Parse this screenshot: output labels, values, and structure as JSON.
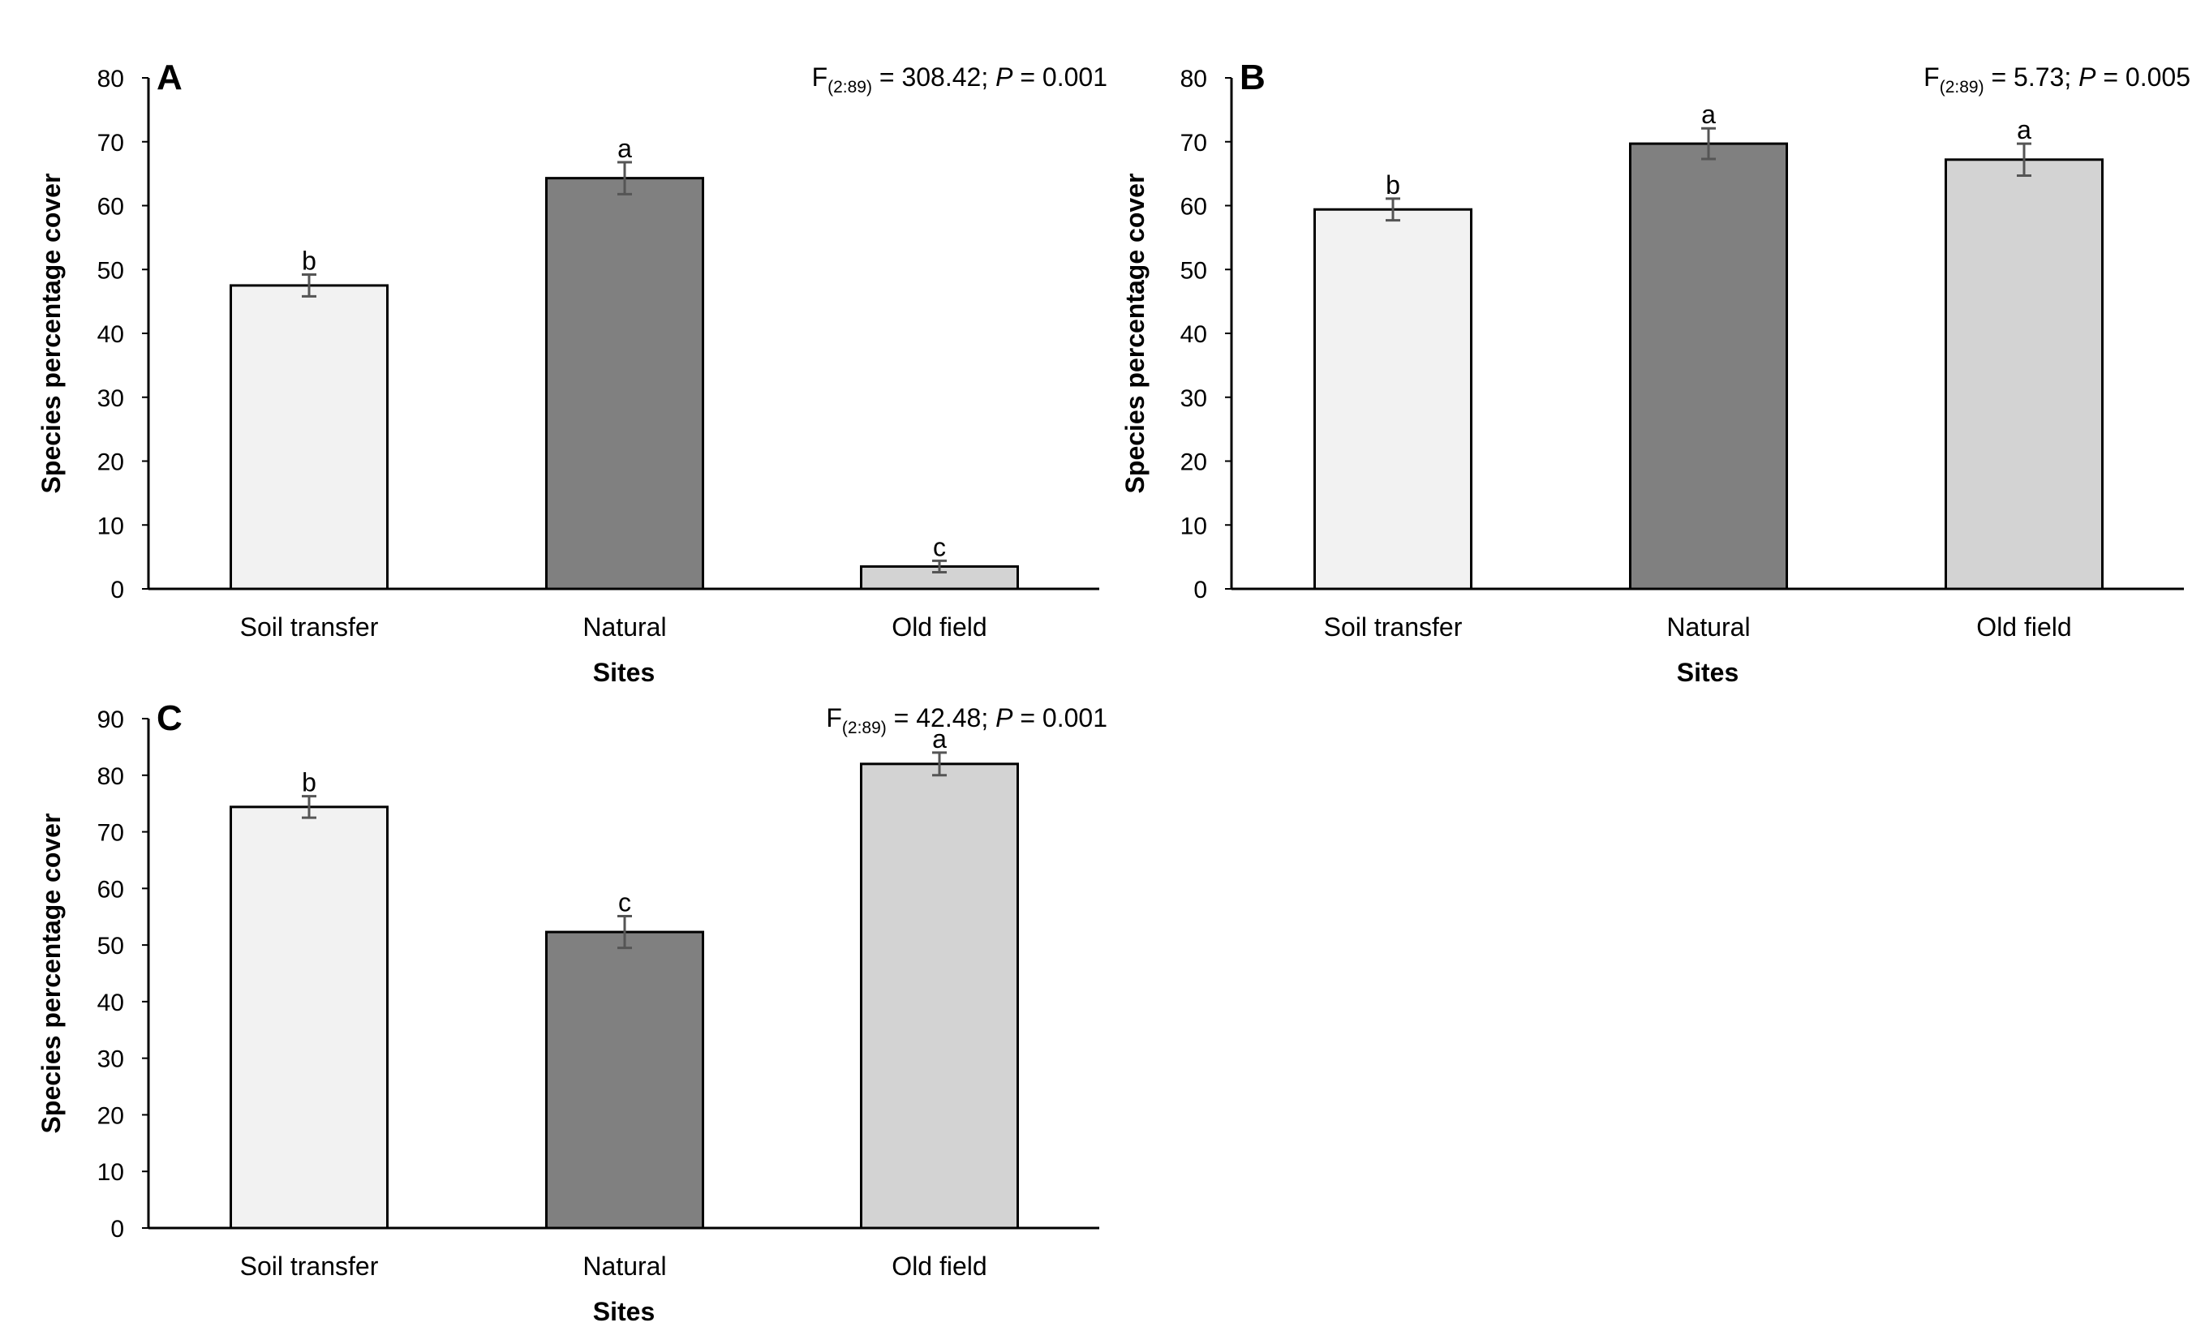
{
  "chart_data": [
    {
      "type": "bar",
      "panel": "A",
      "stat": {
        "f_prefix": "F",
        "f_sub": "(2:89)",
        "f_value": " = 308.42; ",
        "p_label": "P",
        "p_value": " = 0.001"
      },
      "categories": [
        "Soil transfer",
        "Natural",
        "Old field"
      ],
      "values": [
        47.5,
        64.3,
        3.5
      ],
      "errors": [
        1.7,
        2.5,
        0.9
      ],
      "letters": [
        "b",
        "a",
        "c"
      ],
      "colors": [
        "#f2f2f2",
        "#808080",
        "#d3d3d3"
      ],
      "ylabel": "Species percentage cover",
      "xlabel": "Sites",
      "ylim": [
        0,
        80
      ],
      "yticks": [
        0,
        10,
        20,
        30,
        40,
        50,
        60,
        70,
        80
      ]
    },
    {
      "type": "bar",
      "panel": "B",
      "stat": {
        "f_prefix": "F",
        "f_sub": "(2:89)",
        "f_value": " = 5.73; ",
        "p_label": "P",
        "p_value": " = 0.005"
      },
      "categories": [
        "Soil transfer",
        "Natural",
        "Old field"
      ],
      "values": [
        59.4,
        69.7,
        67.2
      ],
      "errors": [
        1.7,
        2.4,
        2.5
      ],
      "letters": [
        "b",
        "a",
        "a"
      ],
      "colors": [
        "#f2f2f2",
        "#808080",
        "#d3d3d3"
      ],
      "ylabel": "Species percentage cover",
      "xlabel": "Sites",
      "ylim": [
        0,
        80
      ],
      "yticks": [
        0,
        10,
        20,
        30,
        40,
        50,
        60,
        70,
        80
      ]
    },
    {
      "type": "bar",
      "panel": "C",
      "stat": {
        "f_prefix": "F",
        "f_sub": "(2:89)",
        "f_value": " = 42.48; ",
        "p_label": "P",
        "p_value": " = 0.001"
      },
      "categories": [
        "Soil transfer",
        "Natural",
        "Old field"
      ],
      "values": [
        74.4,
        52.3,
        82.0
      ],
      "errors": [
        1.9,
        2.8,
        2.0
      ],
      "letters": [
        "b",
        "c",
        "a"
      ],
      "colors": [
        "#f2f2f2",
        "#808080",
        "#d3d3d3"
      ],
      "ylabel": "Species percentage cover",
      "xlabel": "Sites",
      "ylim": [
        0,
        90
      ],
      "yticks": [
        0,
        10,
        20,
        30,
        40,
        50,
        60,
        70,
        80,
        90
      ]
    }
  ]
}
